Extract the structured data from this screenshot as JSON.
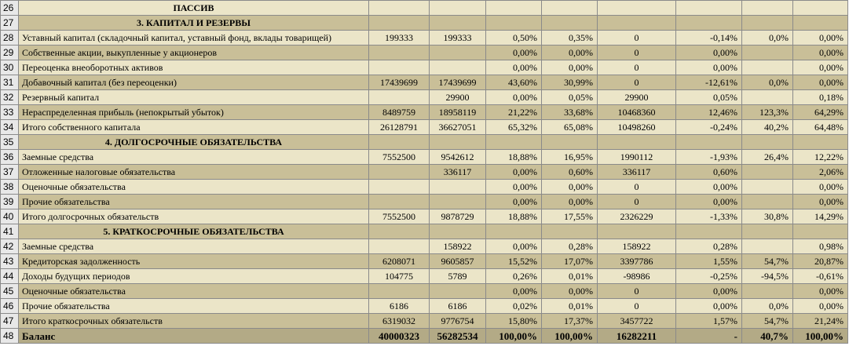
{
  "title": "ПАССИВ",
  "rows": [
    {
      "n": "26",
      "type": "header",
      "label": "ПАССИВ",
      "c": [
        "",
        "",
        "",
        "",
        "",
        "",
        "",
        ""
      ]
    },
    {
      "n": "27",
      "type": "section",
      "label": "3. КАПИТАЛ И РЕЗЕРВЫ",
      "c": [
        "",
        "",
        "",
        "",
        "",
        "",
        "",
        ""
      ]
    },
    {
      "n": "28",
      "type": "data",
      "label": "Уставный капитал (складочный капитал, уставный фонд, вклады товарищей)",
      "c": [
        "199333",
        "199333",
        "0,50%",
        "0,35%",
        "0",
        "-0,14%",
        "0,0%",
        "0,00%"
      ]
    },
    {
      "n": "29",
      "type": "data",
      "label": "Собственные акции, выкупленные у акционеров",
      "c": [
        "",
        "",
        "0,00%",
        "0,00%",
        "0",
        "0,00%",
        "",
        "0,00%"
      ]
    },
    {
      "n": "30",
      "type": "data",
      "label": "Переоценка внеоборотных активов",
      "c": [
        "",
        "",
        "0,00%",
        "0,00%",
        "0",
        "0,00%",
        "",
        "0,00%"
      ]
    },
    {
      "n": "31",
      "type": "data",
      "label": "Добавочный капитал (без переоценки)",
      "c": [
        "17439699",
        "17439699",
        "43,60%",
        "30,99%",
        "0",
        "-12,61%",
        "0,0%",
        "0,00%"
      ]
    },
    {
      "n": "32",
      "type": "data",
      "label": "Резервный капитал",
      "c": [
        "",
        "29900",
        "0,00%",
        "0,05%",
        "29900",
        "0,05%",
        "",
        "0,18%"
      ]
    },
    {
      "n": "33",
      "type": "data",
      "label": "Нераспределенная прибыль (непокрытый убыток)",
      "c": [
        "8489759",
        "18958119",
        "21,22%",
        "33,68%",
        "10468360",
        "12,46%",
        "123,3%",
        "64,29%"
      ]
    },
    {
      "n": "34",
      "type": "data",
      "label": "Итого собственного капитала",
      "c": [
        "26128791",
        "36627051",
        "65,32%",
        "65,08%",
        "10498260",
        "-0,24%",
        "40,2%",
        "64,48%"
      ]
    },
    {
      "n": "35",
      "type": "section",
      "label": "4. ДОЛГОСРОЧНЫЕ ОБЯЗАТЕЛЬСТВА",
      "c": [
        "",
        "",
        "",
        "",
        "",
        "",
        "",
        ""
      ]
    },
    {
      "n": "36",
      "type": "data",
      "label": "Заемные средства",
      "c": [
        "7552500",
        "9542612",
        "18,88%",
        "16,95%",
        "1990112",
        "-1,93%",
        "26,4%",
        "12,22%"
      ]
    },
    {
      "n": "37",
      "type": "data",
      "label": "Отложенные налоговые обязательства",
      "c": [
        "",
        "336117",
        "0,00%",
        "0,60%",
        "336117",
        "0,60%",
        "",
        "2,06%"
      ]
    },
    {
      "n": "38",
      "type": "data",
      "label": "Оценочные обязательства",
      "c": [
        "",
        "",
        "0,00%",
        "0,00%",
        "0",
        "0,00%",
        "",
        "0,00%"
      ]
    },
    {
      "n": "39",
      "type": "data",
      "label": "Прочие обязательства",
      "c": [
        "",
        "",
        "0,00%",
        "0,00%",
        "0",
        "0,00%",
        "",
        "0,00%"
      ]
    },
    {
      "n": "40",
      "type": "data",
      "label": "Итого долгосрочных обязательств",
      "c": [
        "7552500",
        "9878729",
        "18,88%",
        "17,55%",
        "2326229",
        "-1,33%",
        "30,8%",
        "14,29%"
      ]
    },
    {
      "n": "41",
      "type": "section",
      "label": "5. КРАТКОСРОЧНЫЕ ОБЯЗАТЕЛЬСТВА",
      "c": [
        "",
        "",
        "",
        "",
        "",
        "",
        "",
        ""
      ]
    },
    {
      "n": "42",
      "type": "data",
      "label": "Заемные средства",
      "c": [
        "",
        "158922",
        "0,00%",
        "0,28%",
        "158922",
        "0,28%",
        "",
        "0,98%"
      ]
    },
    {
      "n": "43",
      "type": "data",
      "label": "Кредиторская задолженность",
      "c": [
        "6208071",
        "9605857",
        "15,52%",
        "17,07%",
        "3397786",
        "1,55%",
        "54,7%",
        "20,87%"
      ]
    },
    {
      "n": "44",
      "type": "data",
      "label": "Доходы будущих периодов",
      "c": [
        "104775",
        "5789",
        "0,26%",
        "0,01%",
        "-98986",
        "-0,25%",
        "-94,5%",
        "-0,61%"
      ]
    },
    {
      "n": "45",
      "type": "data",
      "label": "Оценочные обязательства",
      "c": [
        "",
        "",
        "0,00%",
        "0,00%",
        "0",
        "0,00%",
        "",
        "0,00%"
      ]
    },
    {
      "n": "46",
      "type": "data",
      "label": "Прочие обязательства",
      "c": [
        "6186",
        "6186",
        "0,02%",
        "0,01%",
        "0",
        "0,00%",
        "0,0%",
        "0,00%"
      ]
    },
    {
      "n": "47",
      "type": "data",
      "label": "Итого краткосрочных обязательств",
      "c": [
        "6319032",
        "9776754",
        "15,80%",
        "17,37%",
        "3457722",
        "1,57%",
        "54,7%",
        "21,24%"
      ]
    },
    {
      "n": "48",
      "type": "total",
      "label": "Баланс",
      "c": [
        "40000323",
        "56282534",
        "100,00%",
        "100,00%",
        "16282211",
        "-",
        "40,7%",
        "100,00%"
      ]
    }
  ]
}
